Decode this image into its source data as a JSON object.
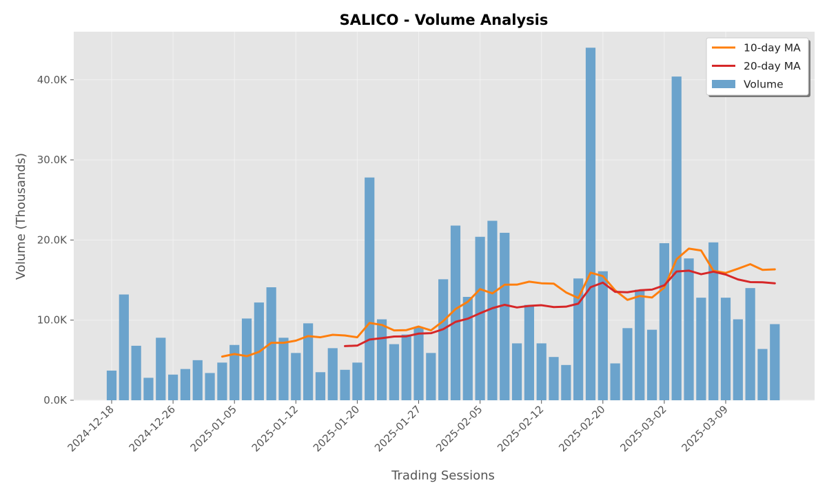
{
  "chart_data": {
    "type": "bar",
    "title": "SALICO - Volume Analysis",
    "xlabel": "Trading Sessions",
    "ylabel": "Volume (Thousands)",
    "ylim": [
      0,
      46000
    ],
    "yticks": [
      0,
      10000,
      20000,
      30000,
      40000
    ],
    "ytick_labels": [
      "0.0K",
      "10.0K",
      "20.0K",
      "30.0K",
      "40.0K"
    ],
    "xticks": [
      "2024-12-18",
      "2024-12-26",
      "2025-01-05",
      "2025-01-12",
      "2025-01-20",
      "2025-01-27",
      "2025-02-05",
      "2025-02-12",
      "2025-02-20",
      "2025-03-02",
      "2025-03-09"
    ],
    "xtick_session_index": [
      0,
      5,
      10,
      15,
      20,
      25,
      30,
      35,
      40,
      45,
      50
    ],
    "grid": true,
    "legend_position": "top-right",
    "legend": [
      "10-day MA",
      "20-day MA",
      "Volume"
    ],
    "colors": {
      "volume": "#6ba3cc",
      "ma10": "#ff7f0e",
      "ma20": "#d62728",
      "plot_bg": "#e5e5e5",
      "grid": "#f2f2f2"
    },
    "series": [
      {
        "name": "Volume",
        "kind": "bar",
        "values": [
          3700,
          13200,
          6800,
          2800,
          7800,
          3200,
          3900,
          5000,
          3400,
          4700,
          6900,
          10200,
          12200,
          14100,
          7800,
          5900,
          9600,
          3500,
          6500,
          3800,
          4700,
          27800,
          10100,
          7000,
          8200,
          9100,
          5900,
          15100,
          21800,
          12900,
          20400,
          22400,
          20900,
          7100,
          11900,
          7100,
          5400,
          4400,
          15200,
          44000,
          16100,
          4600,
          9000,
          13800,
          8800,
          19600,
          40400,
          17700,
          12800,
          19700,
          12800,
          10100,
          14000,
          6400,
          9500
        ]
      },
      {
        "name": "10-day MA",
        "kind": "line",
        "values": [
          null,
          null,
          null,
          null,
          null,
          null,
          null,
          null,
          null,
          5450,
          5770,
          5500,
          6040,
          7170,
          7170,
          7440,
          8010,
          7860,
          8170,
          8080,
          7860,
          9650,
          9400,
          8720,
          8750,
          9200,
          8720,
          9880,
          11380,
          12290,
          13870,
          13340,
          14420,
          14430,
          14800,
          14600,
          14550,
          13460,
          12760,
          15920,
          15490,
          13720,
          12530,
          13010,
          12820,
          14070,
          17600,
          18930,
          18690,
          16170,
          15890,
          16420,
          16980,
          16270,
          16340
        ]
      },
      {
        "name": "20-day MA",
        "kind": "line",
        "values": [
          null,
          null,
          null,
          null,
          null,
          null,
          null,
          null,
          null,
          null,
          null,
          null,
          null,
          null,
          null,
          null,
          null,
          null,
          null,
          6760,
          6820,
          7580,
          7750,
          7950,
          7980,
          8320,
          8370,
          8870,
          9780,
          10180,
          10860,
          11490,
          11910,
          11580,
          11780,
          11860,
          11630,
          11680,
          12060,
          14110,
          14680,
          13530,
          13480,
          13720,
          13810,
          14340,
          16070,
          16180,
          15730,
          16050,
          15690,
          15080,
          14750,
          14720,
          14600
        ]
      }
    ]
  }
}
